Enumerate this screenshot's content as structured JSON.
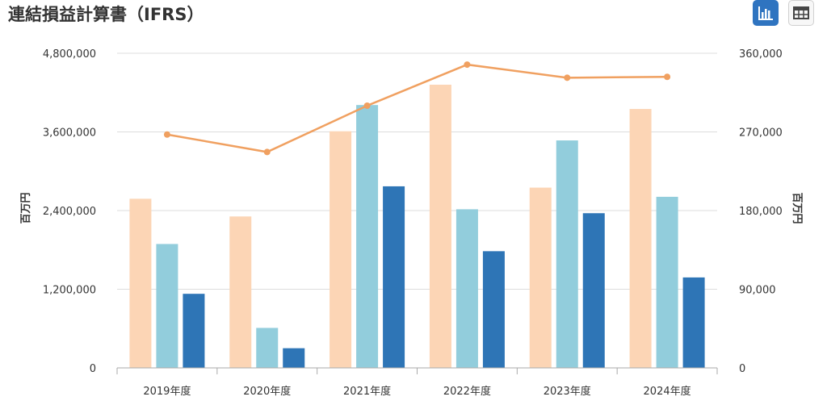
{
  "header": {
    "title": "連結損益計算書（IFRS）"
  },
  "toolbar": {
    "chart_view_icon": "bar-chart-icon",
    "table_view_icon": "table-icon"
  },
  "colors": {
    "series1": "#fcd5b5",
    "series2": "#92cddc",
    "series3": "#2e75b6",
    "line": "#f0a060",
    "grid": "#dddddd",
    "axis": "#aaaaaa"
  },
  "chart_data": {
    "type": "bar",
    "categories": [
      "2019年度",
      "2020年度",
      "2021年度",
      "2022年度",
      "2023年度",
      "2024年度"
    ],
    "series": [
      {
        "values": [
          2580000,
          2310000,
          3610000,
          4320000,
          2750000,
          3950000
        ],
        "axis": "left",
        "type": "bar"
      },
      {
        "values": [
          1890000,
          610000,
          4010000,
          2420000,
          3470000,
          2610000
        ],
        "axis": "left",
        "type": "bar"
      },
      {
        "values": [
          1130000,
          300000,
          2770000,
          1780000,
          2360000,
          1380000
        ],
        "axis": "left",
        "type": "bar"
      },
      {
        "values": [
          267000,
          247000,
          300000,
          347000,
          332000,
          333000
        ],
        "axis": "right",
        "type": "line"
      }
    ],
    "ylabel": "百万円",
    "y2label": "百万円",
    "ylim": [
      0,
      4800000
    ],
    "y2lim": [
      0,
      360000
    ],
    "yticks": [
      "0",
      "1,200,000",
      "2,400,000",
      "3,600,000",
      "4,800,000"
    ],
    "y2ticks": [
      "0",
      "90,000",
      "180,000",
      "270,000",
      "360,000"
    ],
    "grid": true
  }
}
